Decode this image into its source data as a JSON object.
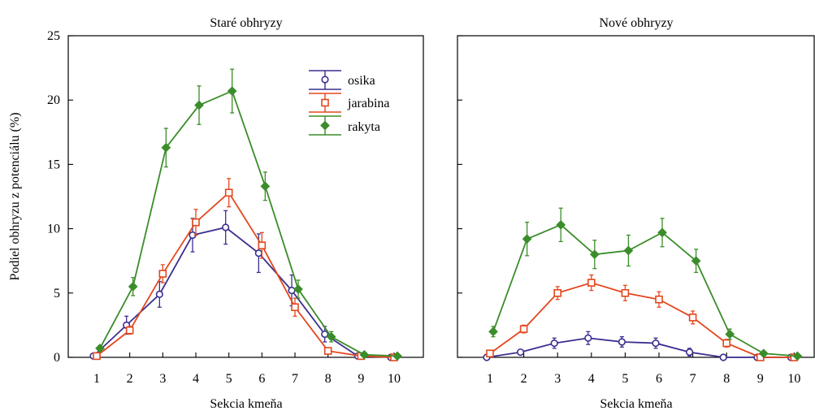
{
  "figure": {
    "ylabel": "Podiel obhryzu z potenciálu (%)"
  },
  "colors": {
    "osika": "#3a2f8f",
    "jarabina": "#e4471d",
    "rakyta": "#3b8d2a"
  },
  "chart_data": [
    {
      "type": "line",
      "title": "Staré obhryzy",
      "xlabel": "Sekcia kmeňa",
      "ylabel": "Podiel obhryzu z potenciálu (%)",
      "x": [
        1,
        2,
        3,
        4,
        5,
        6,
        7,
        8,
        9,
        10
      ],
      "xticks": [
        "1",
        "2",
        "3",
        "4",
        "5",
        "6",
        "7",
        "8",
        "9",
        "10"
      ],
      "ylim": [
        0,
        25
      ],
      "yticks": [
        "0",
        "5",
        "10",
        "15",
        "20",
        "25"
      ],
      "legend": "top-center",
      "series": [
        {
          "name": "osika",
          "marker": "circle",
          "color": "#3a2f8f",
          "values": [
            0.1,
            2.5,
            4.9,
            9.5,
            10.1,
            8.1,
            5.2,
            1.8,
            0.1,
            0.0
          ],
          "errors": [
            0.1,
            0.7,
            1.0,
            1.3,
            1.3,
            1.5,
            1.2,
            0.6,
            0.1,
            0.05
          ]
        },
        {
          "name": "jarabina",
          "marker": "square",
          "color": "#e4471d",
          "values": [
            0.1,
            2.1,
            6.5,
            10.5,
            12.8,
            8.7,
            3.9,
            0.5,
            0.1,
            0.0
          ],
          "errors": [
            0.1,
            0.3,
            0.7,
            1.0,
            1.1,
            1.0,
            0.7,
            0.2,
            0.05,
            0.05
          ]
        },
        {
          "name": "rakyta",
          "marker": "diamond",
          "color": "#3b8d2a",
          "values": [
            0.7,
            5.5,
            16.3,
            19.6,
            20.7,
            13.3,
            5.3,
            1.6,
            0.2,
            0.1
          ],
          "errors": [
            0.2,
            0.7,
            1.5,
            1.5,
            1.7,
            1.1,
            0.7,
            0.4,
            0.1,
            0.05
          ]
        }
      ]
    },
    {
      "type": "line",
      "title": "Nové obhryzy",
      "xlabel": "Sekcia kmeňa",
      "ylabel": "",
      "x": [
        1,
        2,
        3,
        4,
        5,
        6,
        7,
        8,
        9,
        10
      ],
      "xticks": [
        "1",
        "2",
        "3",
        "4",
        "5",
        "6",
        "7",
        "8",
        "9",
        "10"
      ],
      "ylim": [
        0,
        25
      ],
      "yticks": [],
      "series": [
        {
          "name": "osika",
          "marker": "circle",
          "color": "#3a2f8f",
          "values": [
            0.0,
            0.4,
            1.1,
            1.5,
            1.2,
            1.1,
            0.4,
            0.0,
            0.0,
            0.0
          ],
          "errors": [
            0.05,
            0.2,
            0.4,
            0.5,
            0.4,
            0.4,
            0.3,
            0.05,
            0.05,
            0.05
          ]
        },
        {
          "name": "jarabina",
          "marker": "square",
          "color": "#e4471d",
          "values": [
            0.3,
            2.2,
            5.0,
            5.8,
            5.0,
            4.5,
            3.1,
            1.1,
            0.0,
            0.0
          ],
          "errors": [
            0.1,
            0.3,
            0.5,
            0.6,
            0.6,
            0.6,
            0.5,
            0.3,
            0.05,
            0.05
          ]
        },
        {
          "name": "rakyta",
          "marker": "diamond",
          "color": "#3b8d2a",
          "values": [
            2.0,
            9.2,
            10.3,
            8.0,
            8.3,
            9.7,
            7.5,
            1.8,
            0.3,
            0.1
          ],
          "errors": [
            0.4,
            1.3,
            1.3,
            1.1,
            1.2,
            1.1,
            0.9,
            0.4,
            0.1,
            0.05
          ]
        }
      ]
    }
  ]
}
